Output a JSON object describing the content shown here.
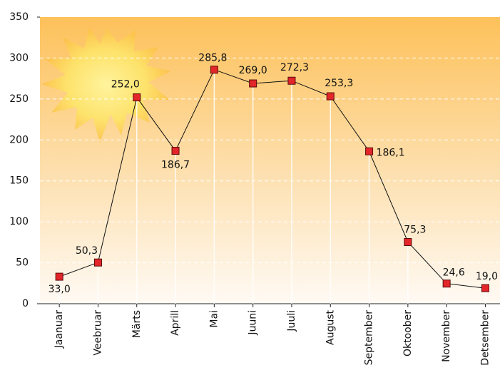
{
  "chart_data": {
    "type": "line",
    "categories": [
      "Jaanuar",
      "Veebruar",
      "Märts",
      "Aprill",
      "Mai",
      "Juuni",
      "Juuli",
      "August",
      "September",
      "Oktoober",
      "November",
      "Detsember"
    ],
    "values": [
      33.0,
      50.3,
      252.0,
      186.7,
      285.8,
      269.0,
      272.3,
      253.3,
      186.1,
      75.3,
      24.6,
      19.0
    ],
    "value_labels": [
      "33,0",
      "50,3",
      "252,0",
      "186,7",
      "285,8",
      "269,0",
      "272,3",
      "253,3",
      "186,1",
      "75,3",
      "24,6",
      "19,0"
    ],
    "color": "#e3262a",
    "ylim": [
      0,
      350
    ],
    "yticks": [
      0,
      50,
      100,
      150,
      200,
      250,
      300,
      350
    ],
    "grid": true
  }
}
